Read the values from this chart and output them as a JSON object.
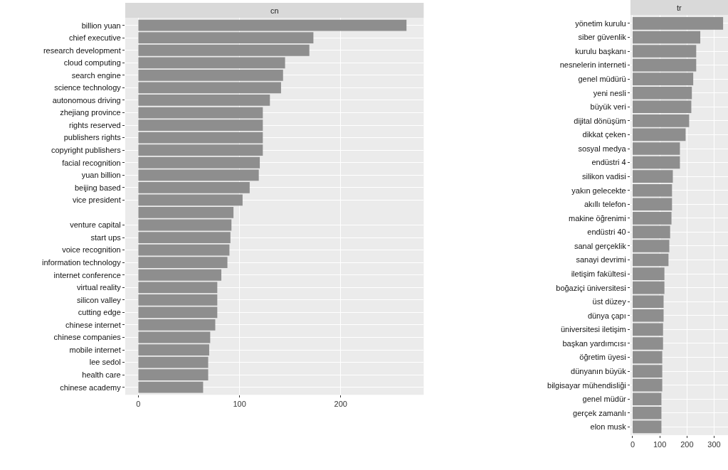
{
  "chart_data": [
    {
      "type": "bar",
      "title": "cn",
      "orientation": "horizontal",
      "color": "#8e8e8e",
      "grid": true,
      "xlim": [
        -13,
        282
      ],
      "xticks": [
        0,
        100,
        200
      ],
      "categories": [
        "billion yuan",
        "chief executive",
        "research development",
        "cloud computing",
        "search engine",
        "science technology",
        "autonomous driving",
        "zhejiang province",
        "rights reserved",
        "publishers rights",
        "copyright publishers",
        "facial recognition",
        "yuan billion",
        "beijing based",
        "vice president",
        null,
        "venture capital",
        "start ups",
        "voice recognition",
        "information technology",
        "internet conference",
        "virtual reality",
        "silicon valley",
        "cutting edge",
        "chinese internet",
        "chinese companies",
        "mobile internet",
        "lee sedol",
        "health care",
        "chinese academy"
      ],
      "values": [
        265,
        173,
        169,
        145,
        143,
        141,
        130,
        123,
        123,
        123,
        123,
        120,
        119,
        110,
        103,
        94,
        92,
        91,
        90,
        88,
        82,
        78,
        78,
        78,
        76,
        71,
        70,
        69,
        69,
        64
      ]
    },
    {
      "type": "bar",
      "title": "tr",
      "orientation": "horizontal",
      "color": "#8e8e8e",
      "grid": true,
      "xlim": [
        -8,
        351
      ],
      "xticks": [
        0,
        100,
        200,
        300
      ],
      "categories": [
        "yönetim kurulu",
        "siber güvenlik",
        "kurulu başkanı",
        "nesnelerin interneti",
        "genel müdürü",
        "yeni nesli",
        "büyük veri",
        "dijital dönüşüm",
        "dikkat çeken",
        "sosyal medya",
        "endüstri 4",
        "silikon vadisi",
        "yakın gelecekte",
        "akıllı telefon",
        "makine öğrenimi",
        "endüstri 40",
        "sanal gerçeklik",
        "sanayi devrimi",
        "iletişim fakültesi",
        "boğaziçi üniversitesi",
        "üst düzey",
        "dünya çapı",
        "üniversitesi iletişim",
        "başkan yardımcısı",
        "öğretim üyesi",
        "dünyanın büyük",
        "bilgisayar mühendisliği",
        "genel müdür",
        "gerçek zamanlı",
        "elon musk"
      ],
      "values": [
        333,
        249,
        234,
        234,
        223,
        218,
        216,
        208,
        195,
        174,
        174,
        148,
        145,
        145,
        143,
        138,
        135,
        132,
        117,
        117,
        114,
        114,
        112,
        112,
        109,
        109,
        109,
        106,
        106,
        106
      ]
    }
  ]
}
